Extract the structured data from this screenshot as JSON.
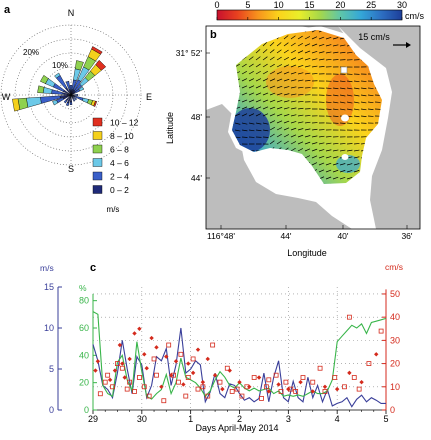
{
  "panel_labels": {
    "a": "a",
    "b": "b",
    "c": "c"
  },
  "colors": {
    "wind_bins": [
      "#1f2a78",
      "#3a5fc8",
      "#6cc9e8",
      "#8fd14f",
      "#f4d01c",
      "#e03020"
    ],
    "vel_red": "#d42a1c",
    "blue_line": "#3a3f9a",
    "green_line": "#39b54a",
    "land": "#bdbdbd",
    "colormap": [
      "#c8102e",
      "#e8421f",
      "#f7941d",
      "#fbd31c",
      "#e9ee2a",
      "#a6d84a",
      "#5fc6a8",
      "#34a7d8",
      "#2d6fc2",
      "#1d3e99"
    ]
  },
  "chart_data": [
    {
      "type": "wind-rose",
      "compass": {
        "n": "N",
        "s": "S",
        "e": "E",
        "w": "W"
      },
      "ring_labels": [
        "10%",
        "20%"
      ],
      "ring_values": [
        10,
        20
      ],
      "rmax": 25,
      "speed_bins": [
        "0 – 2",
        "2 – 4",
        "4 – 6",
        "6 – 8",
        "8 – 10",
        "10 – 12"
      ],
      "legend_unit": "m/s",
      "petals": [
        {
          "dir": 0,
          "counts": [
            1.5,
            2
          ]
        },
        {
          "dir": 15,
          "counts": [
            2,
            3.5,
            4,
            3
          ]
        },
        {
          "dir": 30,
          "counts": [
            2,
            4,
            5,
            4,
            3,
            1
          ]
        },
        {
          "dir": 45,
          "counts": [
            2,
            3,
            3,
            3,
            3,
            2
          ]
        },
        {
          "dir": 60,
          "counts": [
            1.5,
            2,
            1.5
          ]
        },
        {
          "dir": 90,
          "counts": [
            1,
            1.5
          ]
        },
        {
          "dir": 110,
          "counts": [
            1.5,
            3,
            2,
            1.5,
            1,
            0.5
          ]
        },
        {
          "dir": 130,
          "counts": [
            1,
            1.5
          ]
        },
        {
          "dir": 150,
          "counts": [
            1.5,
            1
          ]
        },
        {
          "dir": 180,
          "counts": [
            2.5,
            1
          ]
        },
        {
          "dir": 200,
          "counts": [
            3,
            1
          ]
        },
        {
          "dir": 220,
          "counts": [
            2.5,
            1
          ]
        },
        {
          "dir": 245,
          "counts": [
            3,
            2.5,
            1.5
          ]
        },
        {
          "dir": 260,
          "counts": [
            4,
            7,
            5,
            3,
            2
          ]
        },
        {
          "dir": 280,
          "counts": [
            3,
            4,
            3,
            2
          ]
        },
        {
          "dir": 300,
          "counts": [
            3,
            4,
            3,
            2
          ]
        },
        {
          "dir": 325,
          "counts": [
            3,
            5,
            1
          ]
        },
        {
          "dir": 345,
          "counts": [
            2,
            3
          ]
        }
      ]
    },
    {
      "type": "heatmap",
      "colorbar": {
        "ticks": [
          0,
          5,
          10,
          15,
          20,
          25,
          30
        ],
        "unit": "cm/s",
        "vmin": 0,
        "vmax": 30
      },
      "xlabel": "Longitude",
      "ylabel": "Latitude",
      "x_ticks": [
        "116°48'",
        "44'",
        "40'",
        "36'"
      ],
      "y_ticks": [
        "31° 52'",
        "48'",
        "44'"
      ],
      "scale_arrow": "15 cm/s"
    },
    {
      "type": "line",
      "xlabel": "Days April-May 2014",
      "x_ticks": [
        "29",
        "30",
        "1",
        "2",
        "3",
        "4",
        "5"
      ],
      "x_range": [
        0,
        6
      ],
      "left_outer_axis": {
        "unit": "m/s",
        "ticks": [
          0,
          5,
          10,
          15
        ],
        "ylim": [
          0,
          15
        ]
      },
      "left_inner_axis": {
        "unit": "%",
        "ticks": [
          0,
          20,
          40,
          60,
          80
        ],
        "ylim": [
          0,
          90
        ]
      },
      "right_axis": {
        "unit": "cm/s",
        "ticks": [
          0,
          10,
          20,
          30,
          40,
          50
        ],
        "ylim": [
          0,
          53
        ]
      },
      "wind_speed_ms": {
        "x": [
          0,
          0.1,
          0.2,
          0.3,
          0.4,
          0.5,
          0.6,
          0.7,
          0.8,
          0.9,
          1.0,
          1.1,
          1.2,
          1.3,
          1.4,
          1.5,
          1.6,
          1.7,
          1.8,
          1.9,
          2.0,
          2.1,
          2.2,
          2.3,
          2.4,
          2.5,
          2.6,
          2.7,
          2.8,
          2.9,
          3.0,
          3.1,
          3.2,
          3.3,
          3.4,
          3.5,
          3.6,
          3.7,
          3.8,
          3.9,
          4.0,
          4.1,
          4.2,
          4.3,
          4.4,
          4.5,
          4.6,
          4.7,
          4.8,
          4.9,
          5.0,
          5.1,
          5.2,
          5.3,
          5.4,
          5.5,
          5.6,
          5.7,
          5.8,
          5.9,
          6.0
        ],
        "y": [
          8,
          6,
          3,
          2.5,
          1.5,
          4.5,
          8.5,
          5,
          2,
          6.5,
          5.5,
          1.5,
          3,
          6.5,
          6,
          7.5,
          3,
          5.5,
          10,
          4.5,
          5,
          6,
          5.5,
          1,
          2.2,
          4.5,
          2,
          1.5,
          3.2,
          3,
          2,
          1.2,
          1.5,
          1,
          1.4,
          4.5,
          1,
          4,
          6,
          1.5,
          1,
          3.5,
          1.5,
          1,
          4,
          1.5,
          3,
          1,
          2.5,
          0.5,
          0.8,
          1,
          1.5,
          0.4,
          1.3,
          1.8,
          1,
          1.5,
          1.2,
          0.8,
          0.8
        ]
      },
      "percent": {
        "x": [
          0,
          0.1,
          0.2,
          0.3,
          0.4,
          0.5,
          0.6,
          0.7,
          0.8,
          0.9,
          1.0,
          1.1,
          1.2,
          1.3,
          1.4,
          1.5,
          1.6,
          1.7,
          1.8,
          1.9,
          2.0,
          2.1,
          2.2,
          2.3,
          2.4,
          2.5,
          2.6,
          2.7,
          2.8,
          2.9,
          3.0,
          3.1,
          3.2,
          3.3,
          3.4,
          3.5,
          3.6,
          3.7,
          3.8,
          3.9,
          4.0,
          4.1,
          4.2,
          4.3,
          4.4,
          4.5,
          4.6,
          4.7,
          4.8,
          4.9,
          5.0,
          5.1,
          5.2,
          5.3,
          5.4,
          5.5,
          5.6,
          5.7,
          5.8,
          5.9,
          6.0
        ],
        "y": [
          72,
          70,
          18,
          12,
          10,
          35,
          40,
          22,
          14,
          50,
          28,
          10,
          8,
          12,
          15,
          26,
          12,
          20,
          38,
          24,
          22,
          20,
          16,
          10,
          14,
          22,
          28,
          24,
          18,
          16,
          20,
          16,
          14,
          16,
          14,
          15,
          16,
          12,
          14,
          10,
          11,
          10,
          11,
          10,
          12,
          14,
          12,
          12,
          14,
          22,
          50,
          54,
          58,
          62,
          60,
          63,
          56,
          64,
          65,
          66,
          67
        ]
      },
      "current_speed_cms": {
        "x": [
          0.15,
          0.25,
          0.3,
          0.4,
          0.5,
          0.6,
          0.7,
          0.75,
          0.85,
          0.95,
          1.05,
          1.15,
          1.25,
          1.3,
          1.45,
          1.55,
          1.65,
          1.75,
          1.8,
          1.9,
          1.95,
          2.05,
          2.15,
          2.25,
          2.35,
          2.45,
          2.6,
          2.75,
          2.85,
          2.95,
          3.05,
          3.15,
          3.3,
          3.45,
          3.55,
          3.6,
          3.75,
          3.85,
          3.95,
          4.05,
          4.15,
          4.3,
          4.5,
          4.65,
          4.75,
          4.95,
          5.15,
          5.25,
          5.35,
          5.45,
          5.65,
          5.9
        ],
        "y": [
          7,
          12,
          15,
          10,
          20,
          18,
          9,
          12,
          8,
          14,
          10,
          6,
          22,
          15,
          4,
          28,
          15,
          12,
          24,
          6,
          14,
          22,
          9,
          10,
          6,
          28,
          12,
          18,
          8,
          9,
          6,
          10,
          14,
          5,
          10,
          13,
          15,
          8,
          12,
          9,
          8,
          14,
          12,
          18,
          8,
          14,
          10,
          40,
          14,
          9,
          20,
          34
        ]
      },
      "point_speed_cms": {
        "x": [
          0.05,
          0.1,
          0.35,
          0.45,
          0.55,
          0.6,
          0.65,
          0.75,
          0.85,
          0.95,
          1.05,
          1.1,
          1.2,
          1.3,
          1.4,
          1.5,
          1.6,
          1.7,
          1.85,
          1.95,
          2.05,
          2.15,
          2.25,
          2.35,
          2.5,
          2.65,
          2.8,
          3.0,
          3.2,
          3.4,
          3.6,
          3.8,
          4.0,
          4.25,
          4.5,
          4.75,
          5.0,
          5.25,
          5.5,
          5.8
        ],
        "y": [
          17,
          21,
          13,
          17,
          28,
          20,
          14,
          22,
          33,
          35,
          24,
          18,
          31,
          27,
          10,
          23,
          15,
          21,
          11,
          20,
          16,
          26,
          12,
          22,
          15,
          9,
          17,
          12,
          10,
          14,
          8,
          11,
          9,
          12,
          8,
          10,
          9,
          16,
          12,
          24
        ]
      }
    }
  ]
}
